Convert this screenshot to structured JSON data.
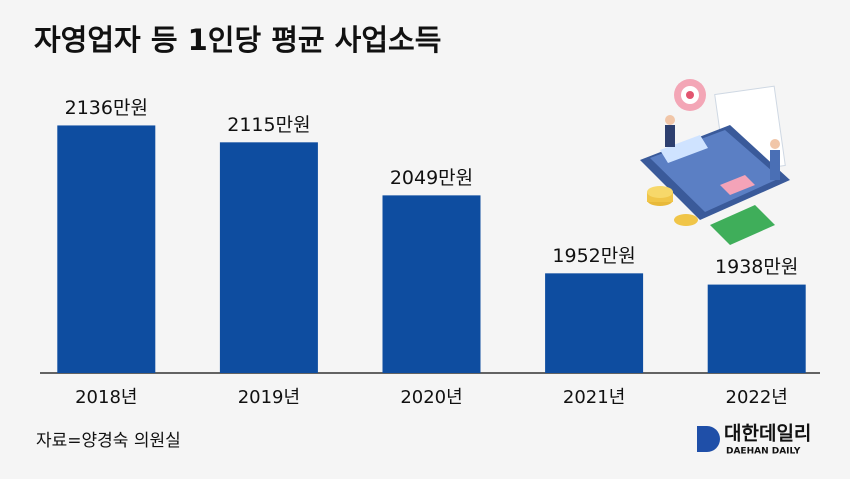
{
  "chart_data": {
    "type": "bar",
    "title": "자영업자 등 1인당 평균 사업소득",
    "categories": [
      "2018년",
      "2019년",
      "2020년",
      "2021년",
      "2022년"
    ],
    "values": [
      2136,
      2115,
      2049,
      1952,
      1938
    ],
    "value_labels": [
      "2136만원",
      "2115만원",
      "2049만원",
      "1952만원",
      "1938만원"
    ],
    "color": "#0e4da0",
    "ylim": [
      1828,
      2200
    ],
    "source": "자료=양경숙 의원실",
    "logo": {
      "name": "대한데일리",
      "subtitle": "DAEHAN DAILY"
    }
  }
}
